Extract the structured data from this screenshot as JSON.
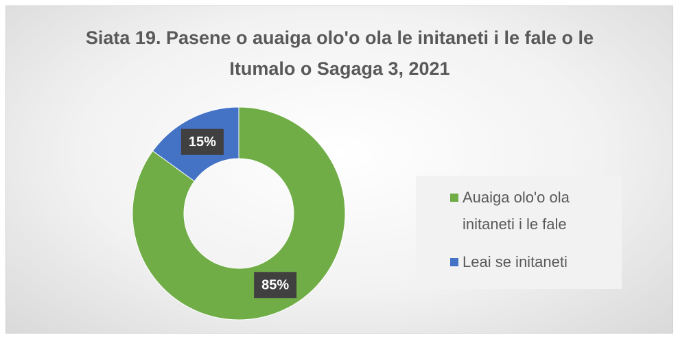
{
  "chart_data": {
    "type": "donut",
    "title": "Siata 19. Pasene o auaiga olo'o ola le initaneti i le fale o le Itumalo o Sagaga 3, 2021",
    "categories": [
      "Auaiga olo'o ola initaneti i le fale",
      "Leai se initaneti"
    ],
    "values": [
      85,
      15
    ],
    "value_labels": [
      "85%",
      "15%"
    ],
    "colors": [
      "#70ad47",
      "#4472c4"
    ],
    "legend": "right"
  }
}
